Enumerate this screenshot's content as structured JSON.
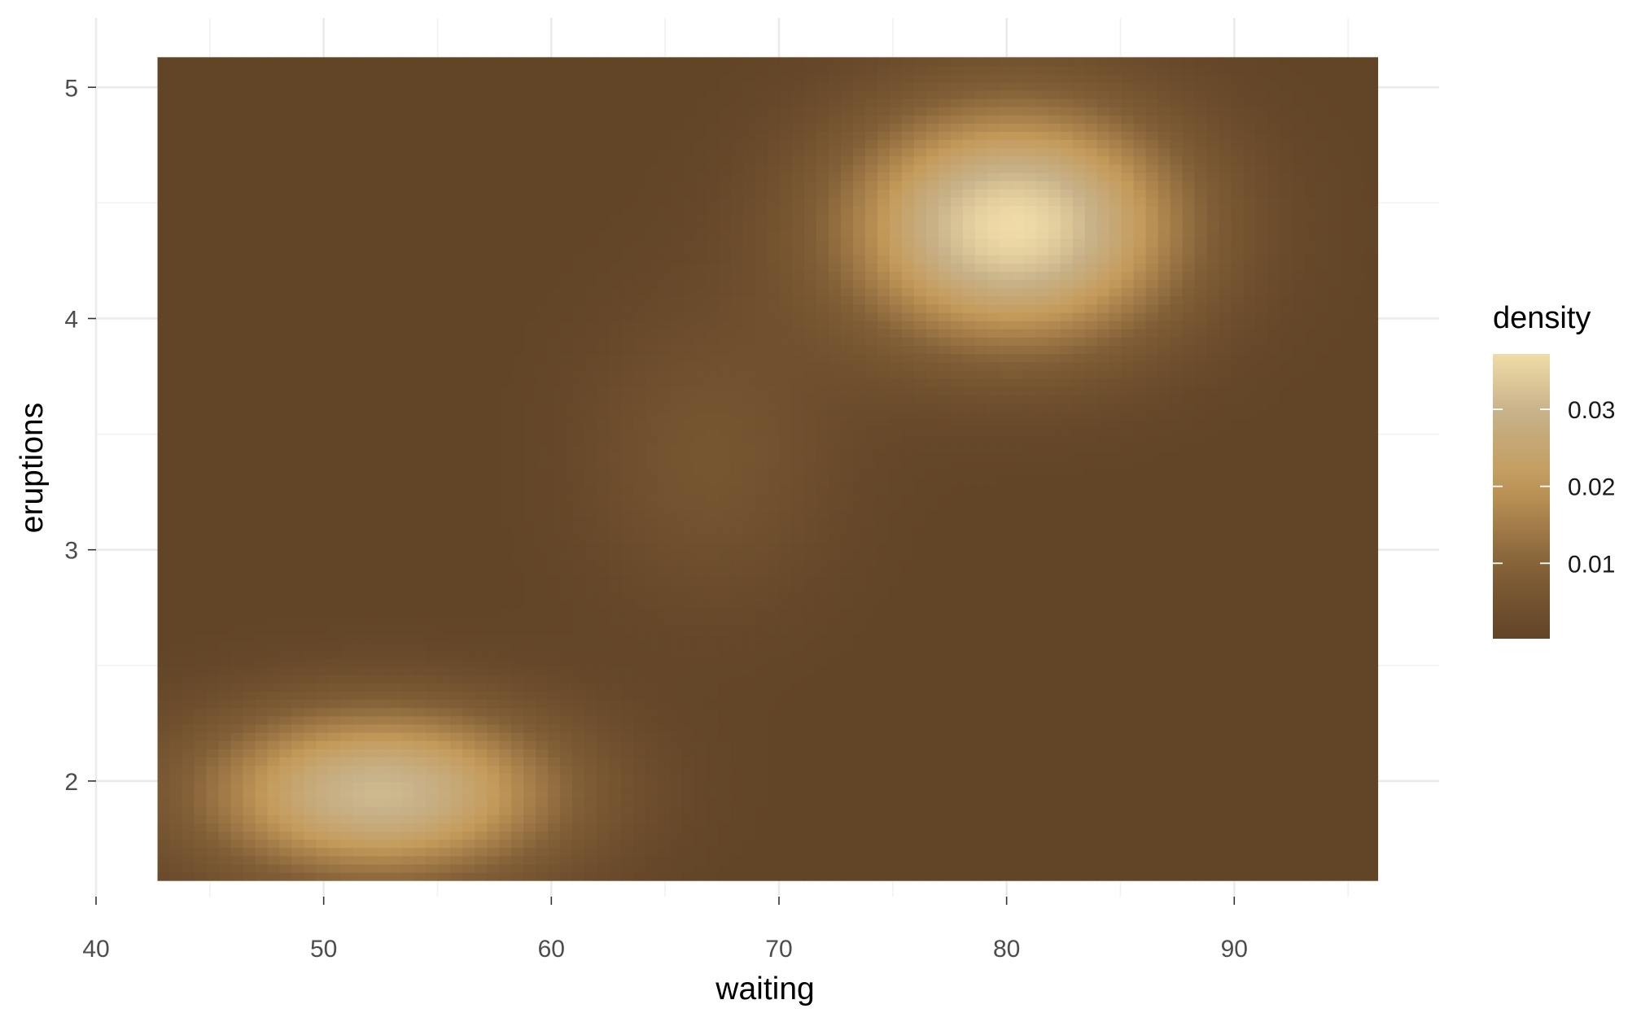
{
  "chart_data": {
    "type": "heatmap",
    "title": "",
    "xlabel": "waiting",
    "ylabel": "eruptions",
    "xlim": [
      40,
      99
    ],
    "ylim": [
      1.5,
      5.3
    ],
    "x_ticks": [
      40,
      50,
      60,
      70,
      80,
      90
    ],
    "y_ticks": [
      2,
      3,
      4,
      5
    ],
    "grid": true,
    "data_extent": {
      "x": [
        42.7,
        96.3
      ],
      "y": [
        1.57,
        5.13
      ]
    },
    "density_peaks": [
      {
        "x": 80.3,
        "y": 4.4,
        "density": 0.037
      },
      {
        "x": 52.5,
        "y": 1.95,
        "density": 0.031
      }
    ],
    "legend": {
      "title": "density",
      "placement": "right",
      "labels": [
        "0.03",
        "0.02",
        "0.01"
      ],
      "tick_values": [
        0.03,
        0.02,
        0.01
      ],
      "range": [
        0.0002,
        0.0372
      ],
      "colors": [
        "#624427",
        "#c49a5a",
        "#c8b28a",
        "#f0dca8"
      ]
    }
  }
}
